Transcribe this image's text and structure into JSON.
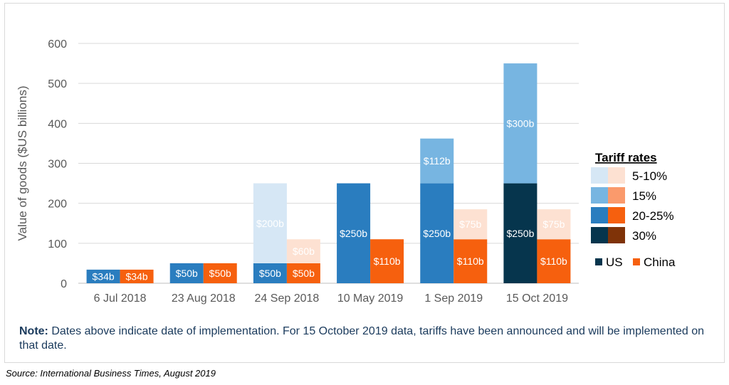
{
  "chart_data": {
    "type": "bar",
    "ylabel": "Value of goods ($US billions)",
    "ylim": [
      0,
      600
    ],
    "yticks": [
      0,
      100,
      200,
      300,
      400,
      500,
      600
    ],
    "grid": true,
    "categories": [
      "6 Jul 2018",
      "23 Aug 2018",
      "24 Sep 2018",
      "10 May 2019",
      "1 Sep 2019",
      "15 Oct 2019"
    ],
    "series": [
      {
        "name": "US",
        "stacks": [
          [
            {
              "rate": "20-25%",
              "value": 34,
              "label": "$34b"
            }
          ],
          [
            {
              "rate": "20-25%",
              "value": 50,
              "label": "$50b"
            }
          ],
          [
            {
              "rate": "20-25%",
              "value": 50,
              "label": "$50b"
            },
            {
              "rate": "5-10%",
              "value": 200,
              "label": "$200b"
            }
          ],
          [
            {
              "rate": "20-25%",
              "value": 250,
              "label": "$250b"
            }
          ],
          [
            {
              "rate": "20-25%",
              "value": 250,
              "label": "$250b"
            },
            {
              "rate": "15%",
              "value": 112,
              "label": "$112b"
            }
          ],
          [
            {
              "rate": "30%",
              "value": 250,
              "label": "$250b"
            },
            {
              "rate": "15%",
              "value": 300,
              "label": "$300b"
            }
          ]
        ]
      },
      {
        "name": "China",
        "stacks": [
          [
            {
              "rate": "20-25%",
              "value": 34,
              "label": "$34b"
            }
          ],
          [
            {
              "rate": "20-25%",
              "value": 50,
              "label": "$50b"
            }
          ],
          [
            {
              "rate": "20-25%",
              "value": 50,
              "label": "$50b"
            },
            {
              "rate": "5-10%",
              "value": 60,
              "label": "$60b"
            }
          ],
          [
            {
              "rate": "20-25%",
              "value": 110,
              "label": "$110b"
            }
          ],
          [
            {
              "rate": "20-25%",
              "value": 110,
              "label": "$110b"
            },
            {
              "rate": "5-10%",
              "value": 75,
              "label": "$75b"
            }
          ],
          [
            {
              "rate": "20-25%",
              "value": 110,
              "label": "$110b"
            },
            {
              "rate": "5-10%",
              "value": 75,
              "label": "$75b"
            }
          ]
        ]
      }
    ],
    "legend": {
      "title": "Tariff rates",
      "rates": [
        "5-10%",
        "15%",
        "20-25%",
        "30%"
      ],
      "series_labels": [
        "US",
        "China"
      ],
      "placement": "right"
    },
    "colors": {
      "US": {
        "5-10%": "#d6e7f5",
        "15%": "#77b5e1",
        "20-25%": "#2a7dbf",
        "30%": "#06354d"
      },
      "China": {
        "5-10%": "#fde1d2",
        "15%": "#fa9a6c",
        "20-25%": "#f6600e",
        "30%": "#7f3308"
      },
      "label_text": "#ffffff",
      "axis_text": "#595959",
      "grid": "#d9d9d9"
    }
  },
  "note": {
    "bold": "Note:",
    "text": " Dates above indicate date of implementation. For 15 October 2019 data, tariffs have been announced and will be implemented on that date."
  },
  "source": "Source: International Business Times, August 2019"
}
